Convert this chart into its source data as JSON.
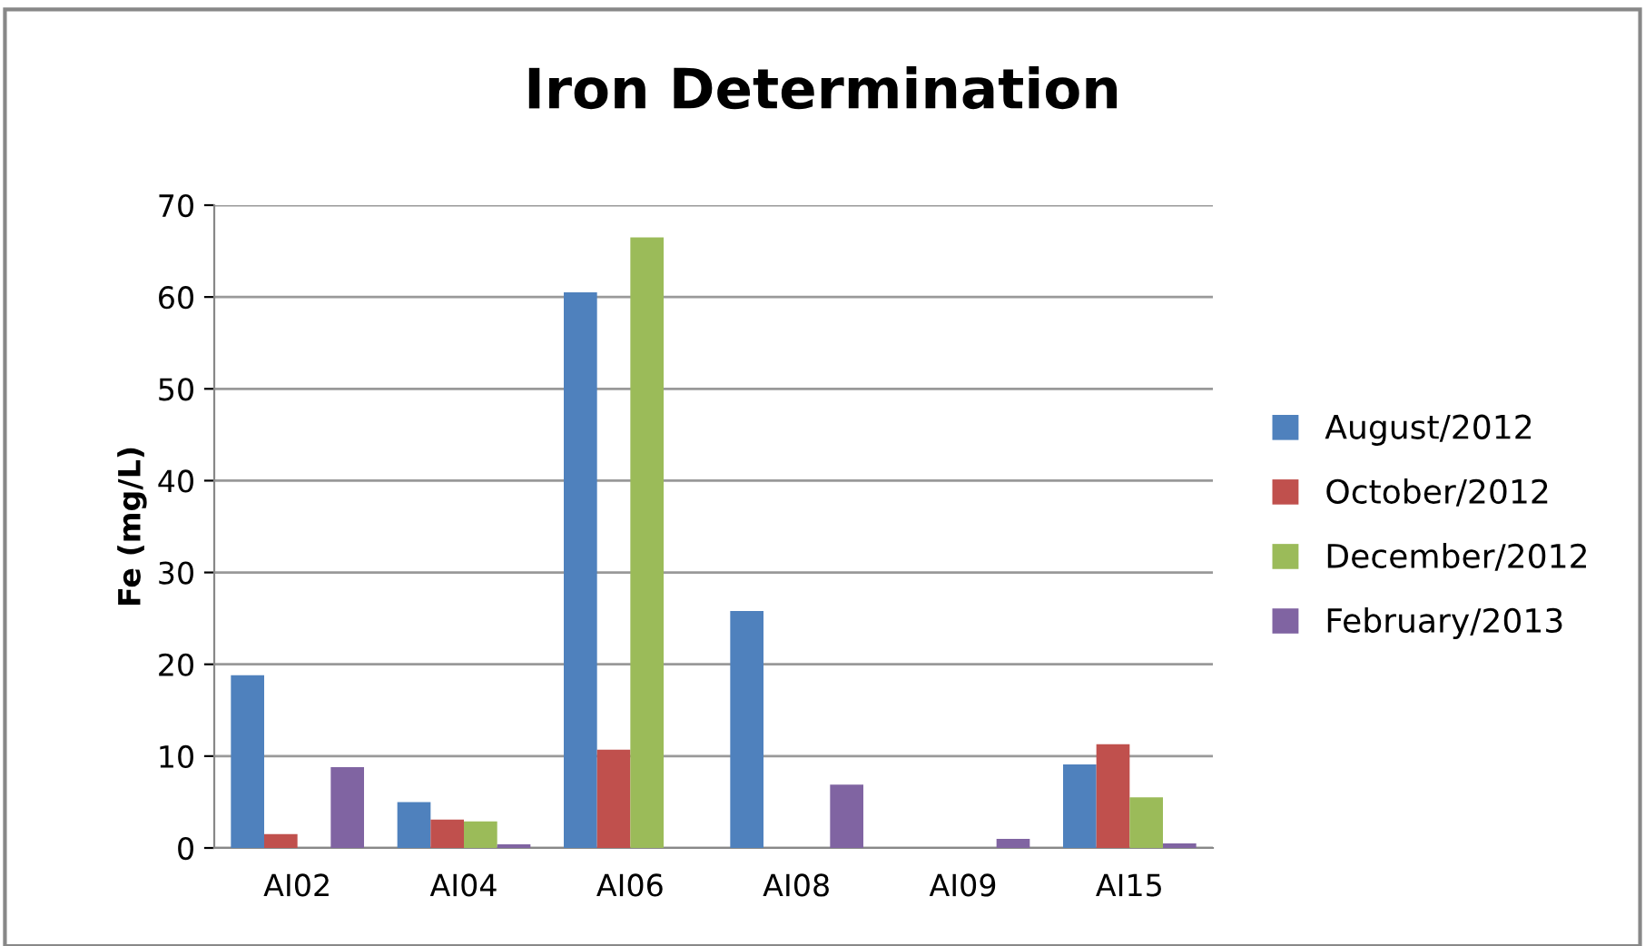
{
  "chart_data": {
    "type": "bar",
    "title": "Iron Determination",
    "ylabel": "Fe (mg/L)",
    "categories": [
      "AI02",
      "AI04",
      "AI06",
      "AI08",
      "AI09",
      "AI15"
    ],
    "series": [
      {
        "name": "August/2012",
        "color": "#4f81bd",
        "values": [
          18.8,
          5.0,
          60.5,
          25.8,
          null,
          9.1
        ]
      },
      {
        "name": "October/2012",
        "color": "#c0504d",
        "values": [
          1.5,
          3.1,
          10.7,
          null,
          null,
          11.3
        ]
      },
      {
        "name": "December/2012",
        "color": "#9bbb59",
        "values": [
          null,
          2.9,
          66.5,
          null,
          null,
          5.5
        ]
      },
      {
        "name": "February/2013",
        "color": "#8064a2",
        "values": [
          8.8,
          0.4,
          null,
          6.9,
          1.0,
          0.5
        ]
      }
    ],
    "ylim": [
      0,
      70
    ],
    "yticks": [
      0,
      10,
      20,
      30,
      40,
      50,
      60,
      70
    ],
    "grid": "y",
    "legend": "right"
  }
}
